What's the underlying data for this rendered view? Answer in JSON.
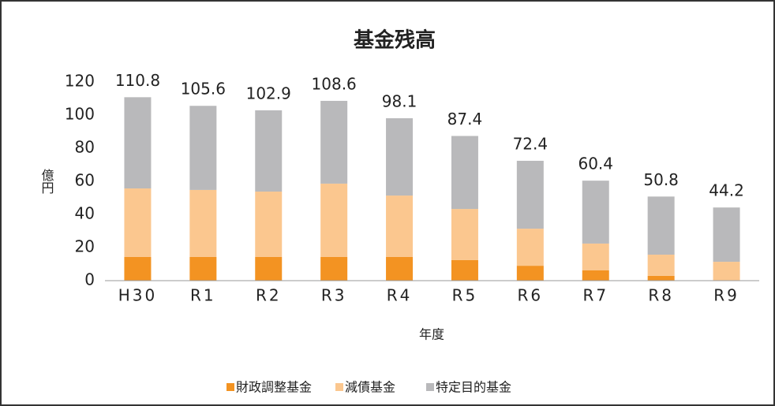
{
  "chart_data": {
    "type": "stacked_bar",
    "title": "基金残高",
    "x_label": "年度",
    "y_label": "億円",
    "categories": [
      "H30",
      "R1",
      "R2",
      "R3",
      "R4",
      "R5",
      "R6",
      "R7",
      "R8",
      "R9"
    ],
    "series": [
      {
        "name": "財政調整基金",
        "color": "#f39322",
        "values": [
          14.3,
          14.3,
          14.3,
          14.3,
          14.3,
          12.4,
          9.0,
          6.2,
          2.9,
          0
        ]
      },
      {
        "name": "減債基金",
        "color": "#fbc78f",
        "values": [
          41.4,
          40.5,
          39.5,
          44.3,
          37.1,
          30.9,
          22.4,
          16.2,
          12.8,
          11.4
        ]
      },
      {
        "name": "特定目的基金",
        "color": "#b9b9bb",
        "values": [
          55.1,
          50.8,
          49.1,
          50.0,
          46.7,
          44.1,
          41.0,
          38.0,
          35.1,
          32.8
        ]
      }
    ],
    "totals": [
      110.8,
      105.6,
      102.9,
      108.6,
      98.1,
      87.4,
      72.4,
      60.4,
      50.8,
      44.2
    ],
    "ylim": [
      0,
      120
    ],
    "yticks": [
      0,
      20,
      40,
      60,
      80,
      100,
      120
    ],
    "grid": false,
    "legend": "bottom"
  }
}
